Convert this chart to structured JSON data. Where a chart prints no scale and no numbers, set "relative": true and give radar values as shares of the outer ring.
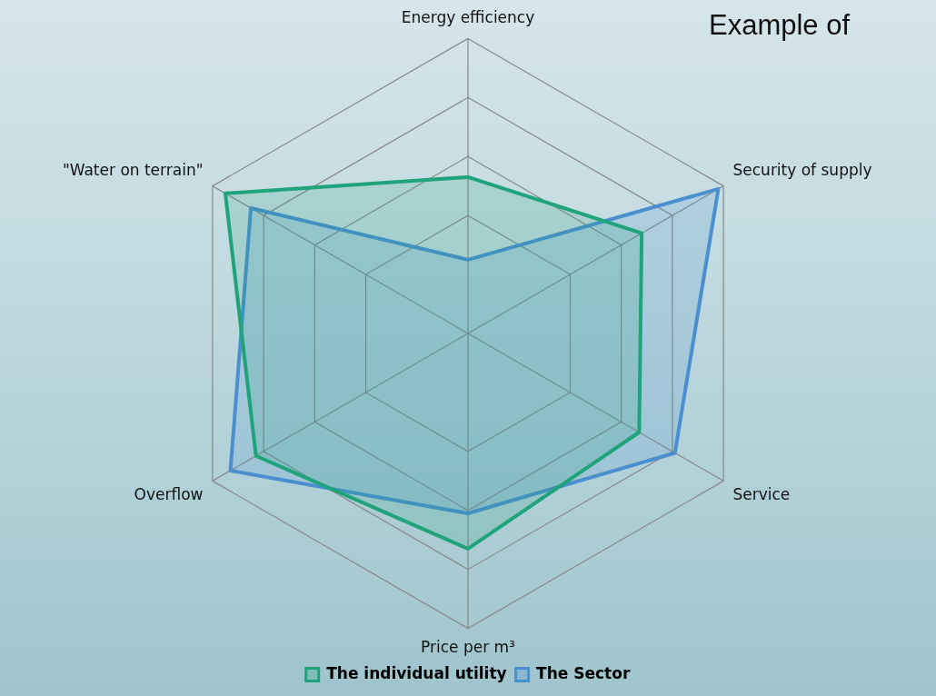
{
  "chart_data": {
    "type": "radar",
    "title": "Example of",
    "relative": true,
    "legend": "bottom",
    "grid": true,
    "categories": [
      "Energy efficiency",
      "Security of supply",
      "Service",
      "Price per m³",
      "Overflow",
      "\"Water on terrain\""
    ],
    "series": [
      {
        "name": "The individual utility",
        "color": "#1fa37a",
        "values": [
          0.53,
          0.68,
          0.67,
          0.73,
          0.83,
          0.95
        ]
      },
      {
        "name": "The Sector",
        "color": "#4a8fcf",
        "values": [
          0.25,
          0.98,
          0.81,
          0.61,
          0.93,
          0.85
        ]
      }
    ]
  }
}
